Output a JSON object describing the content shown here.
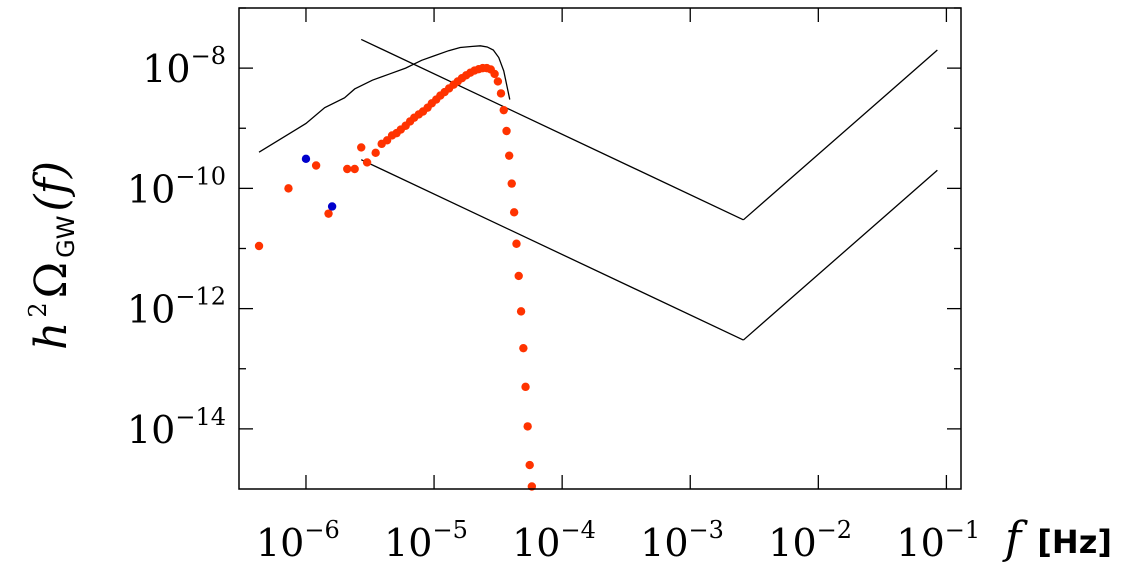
{
  "chart_data": {
    "type": "scatter",
    "x_scale": "log",
    "y_scale": "log",
    "xlim": [
      3e-07,
      0.13
    ],
    "ylim": [
      1e-15,
      1e-07
    ],
    "x_ticks": [
      1e-06,
      1e-05,
      0.0001,
      0.001,
      0.01,
      0.1
    ],
    "x_tick_labels": [
      {
        "base": "10",
        "exp": "−6"
      },
      {
        "base": "10",
        "exp": "−5"
      },
      {
        "base": "10",
        "exp": "−4"
      },
      {
        "base": "10",
        "exp": "−3"
      },
      {
        "base": "10",
        "exp": "−2"
      },
      {
        "base": "10",
        "exp": "−1"
      }
    ],
    "y_ticks": [
      1e-14,
      1e-12,
      1e-10,
      1e-08
    ],
    "y_tick_labels": [
      {
        "base": "10",
        "exp": "−14"
      },
      {
        "base": "10",
        "exp": "−12"
      },
      {
        "base": "10",
        "exp": "−10"
      },
      {
        "base": "10",
        "exp": "−8"
      }
    ],
    "xlabel": {
      "symbol": "f",
      "unit": "[Hz]"
    },
    "ylabel": {
      "prefix": "h",
      "power": "2",
      "omega": "Ω",
      "sub": "GW",
      "arg": "(f)"
    },
    "grid": false,
    "colors": {
      "red_points": "#ff3300",
      "blue_points": "#0000cc",
      "lines": "#000000"
    },
    "series": [
      {
        "kind": "line",
        "points": [
          [
            4.3e-07,
            4e-10
          ],
          [
            1e-06,
            1.2e-09
          ],
          [
            1.4e-06,
            2.2e-09
          ],
          [
            2e-06,
            3.2e-09
          ],
          [
            2.4e-06,
            4.5e-09
          ],
          [
            3.3e-06,
            6.3e-09
          ],
          [
            4.5e-06,
            8e-09
          ],
          [
            6e-06,
            1e-08
          ],
          [
            8e-06,
            1.35e-08
          ],
          [
            1e-05,
            1.6e-08
          ],
          [
            1.3e-05,
            1.95e-08
          ],
          [
            1.6e-05,
            2.2e-08
          ],
          [
            2e-05,
            2.3e-08
          ],
          [
            2.3e-05,
            2.35e-08
          ],
          [
            2.6e-05,
            2.25e-08
          ],
          [
            2.9e-05,
            2e-08
          ],
          [
            3.2e-05,
            1.5e-08
          ],
          [
            3.5e-05,
            9e-09
          ],
          [
            3.9e-05,
            3e-09
          ]
        ]
      },
      {
        "kind": "line",
        "points": [
          [
            2.7e-06,
            3e-08
          ],
          [
            0.0026,
            3e-11
          ]
        ]
      },
      {
        "kind": "line",
        "points": [
          [
            0.0026,
            3e-11
          ],
          [
            0.085,
            2e-08
          ]
        ]
      },
      {
        "kind": "line",
        "points": [
          [
            2.7e-06,
            3e-10
          ],
          [
            0.0026,
            3e-13
          ]
        ]
      },
      {
        "kind": "line",
        "points": [
          [
            0.0026,
            3e-13
          ],
          [
            0.085,
            2e-10
          ]
        ]
      },
      {
        "kind": "scatter",
        "color": "#ff3300",
        "points": [
          [
            4.3e-07,
            1.1e-11
          ],
          [
            7.3e-07,
            1e-10
          ],
          [
            1.2e-06,
            2.4e-10
          ],
          [
            1.5e-06,
            3.8e-11
          ],
          [
            2.1e-06,
            2.1e-10
          ],
          [
            2.4e-06,
            2.1e-10
          ],
          [
            2.7e-06,
            4.8e-10
          ],
          [
            3e-06,
            2.7e-10
          ],
          [
            3.5e-06,
            3.9e-10
          ],
          [
            3.9e-06,
            5.5e-10
          ],
          [
            4.3e-06,
            6.3e-10
          ],
          [
            4.7e-06,
            7.6e-10
          ],
          [
            5.1e-06,
            8.3e-10
          ],
          [
            5.5e-06,
            9.5e-10
          ],
          [
            6e-06,
            1.1e-09
          ],
          [
            6.5e-06,
            1.3e-09
          ],
          [
            7e-06,
            1.5e-09
          ],
          [
            7.6e-06,
            1.7e-09
          ],
          [
            8.2e-06,
            1.9e-09
          ],
          [
            8.9e-06,
            2.2e-09
          ],
          [
            9.6e-06,
            2.6e-09
          ],
          [
            1.04e-05,
            3e-09
          ],
          [
            1.12e-05,
            3.5e-09
          ],
          [
            1.21e-05,
            4e-09
          ],
          [
            1.31e-05,
            4.6e-09
          ],
          [
            1.42e-05,
            5.3e-09
          ],
          [
            1.53e-05,
            6e-09
          ],
          [
            1.65e-05,
            6.8e-09
          ],
          [
            1.78e-05,
            7.6e-09
          ],
          [
            1.92e-05,
            8.4e-09
          ],
          [
            2.07e-05,
            9.1e-09
          ],
          [
            2.23e-05,
            9.6e-09
          ],
          [
            2.4e-05,
            1e-08
          ],
          [
            2.58e-05,
            1e-08
          ],
          [
            2.77e-05,
            9.5e-09
          ],
          [
            2.97e-05,
            8e-09
          ],
          [
            3.15e-05,
            6e-09
          ],
          [
            3.33e-05,
            3.8e-09
          ],
          [
            3.5e-05,
            2e-09
          ],
          [
            3.68e-05,
            9e-10
          ],
          [
            3.86e-05,
            3.5e-10
          ],
          [
            4.04e-05,
            1.2e-10
          ],
          [
            4.22e-05,
            4e-11
          ],
          [
            4.4e-05,
            1.2e-11
          ],
          [
            4.58e-05,
            3.5e-12
          ],
          [
            4.78e-05,
            9e-13
          ],
          [
            4.98e-05,
            2.2e-13
          ],
          [
            5.18e-05,
            5e-14
          ],
          [
            5.38e-05,
            1.1e-14
          ],
          [
            5.58e-05,
            2.5e-15
          ],
          [
            5.8e-05,
            1.1e-15
          ]
        ]
      },
      {
        "kind": "scatter",
        "color": "#0000cc",
        "points": [
          [
            1e-06,
            3.1e-10
          ],
          [
            1.6e-06,
            5e-11
          ]
        ]
      }
    ]
  }
}
